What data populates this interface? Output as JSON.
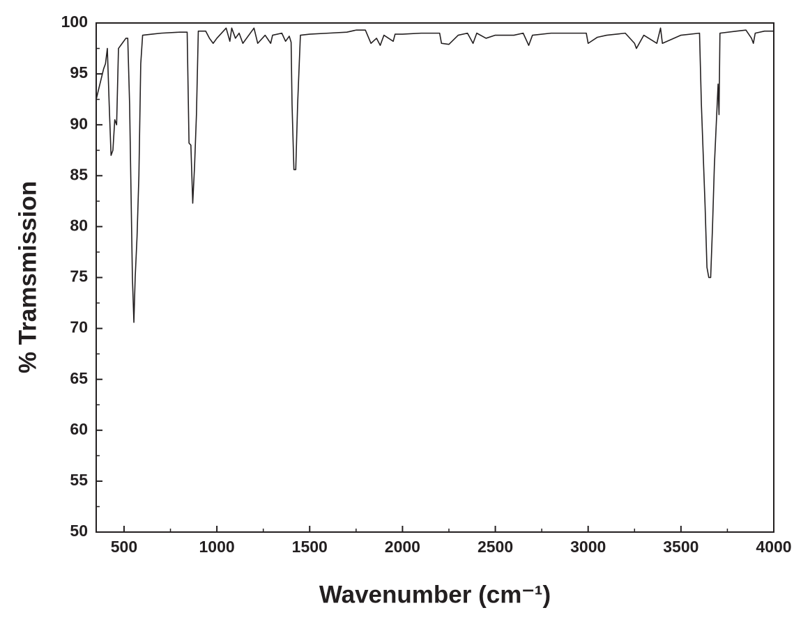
{
  "chart_data": {
    "type": "line",
    "x_label": "Wavenumber (cm⁻¹)",
    "y_label": "% Tramsmission",
    "xlim": [
      350,
      4000
    ],
    "ylim": [
      50,
      100
    ],
    "xticks": [
      500,
      1000,
      1500,
      2000,
      2500,
      3000,
      3500,
      4000
    ],
    "yticks": [
      50,
      55,
      60,
      65,
      70,
      75,
      80,
      85,
      90,
      95,
      100
    ],
    "xticks_minor": [
      750,
      1250,
      1750,
      2250,
      2750,
      3250,
      3750
    ],
    "yticks_minor": [
      52.5,
      57.5,
      62.5,
      67.5,
      72.5,
      77.5,
      82.5,
      87.5,
      92.5,
      97.5
    ],
    "series": [
      {
        "color": "#231f20",
        "x": [
          350,
          370,
          390,
          400,
          410,
          420,
          430,
          440,
          450,
          460,
          470,
          490,
          510,
          520,
          530,
          545,
          553,
          560,
          570,
          580,
          590,
          600,
          650,
          700,
          800,
          840,
          850,
          860,
          870,
          880,
          890,
          900,
          940,
          960,
          980,
          1000,
          1050,
          1070,
          1080,
          1100,
          1120,
          1140,
          1200,
          1220,
          1260,
          1290,
          1300,
          1350,
          1370,
          1390,
          1400,
          1405,
          1415,
          1425,
          1435,
          1450,
          1500,
          1600,
          1700,
          1750,
          1800,
          1830,
          1860,
          1880,
          1900,
          1950,
          1960,
          2000,
          2100,
          2200,
          2210,
          2250,
          2300,
          2350,
          2380,
          2400,
          2450,
          2500,
          2600,
          2650,
          2680,
          2700,
          2800,
          2900,
          2990,
          3000,
          3050,
          3100,
          3200,
          3250,
          3260,
          3300,
          3370,
          3390,
          3400,
          3500,
          3600,
          3610,
          3630,
          3640,
          3650,
          3660,
          3670,
          3680,
          3700,
          3705,
          3710,
          3800,
          3850,
          3880,
          3890,
          3900,
          3950,
          4000
        ],
        "values": [
          92.5,
          94,
          95.5,
          96,
          97.5,
          92,
          87,
          87.5,
          90.5,
          90,
          97.5,
          98,
          98.5,
          98.5,
          92,
          75,
          70.6,
          75,
          79,
          85,
          96,
          98.8,
          98.9,
          99,
          99.1,
          99.1,
          88.2,
          88,
          82.3,
          86,
          91,
          99.2,
          99.2,
          98.5,
          98,
          98.5,
          99.5,
          98.2,
          99.5,
          98.5,
          99,
          98,
          99.5,
          98,
          98.8,
          98,
          98.8,
          99,
          98.2,
          98.7,
          98.1,
          92,
          85.6,
          85.6,
          92,
          98.8,
          98.9,
          99,
          99.1,
          99.3,
          99.3,
          98,
          98.5,
          97.8,
          98.8,
          98.2,
          98.9,
          98.9,
          99,
          99,
          98,
          97.9,
          98.8,
          99,
          98,
          99,
          98.5,
          98.8,
          98.8,
          99,
          97.8,
          98.8,
          99,
          99,
          99,
          98,
          98.6,
          98.8,
          99,
          98,
          97.5,
          98.8,
          98,
          99.5,
          98,
          98.8,
          99,
          92,
          82,
          76,
          75,
          75,
          80,
          86,
          94,
          91,
          99,
          99.2,
          99.3,
          98.5,
          98,
          99,
          99.2,
          99.2
        ]
      }
    ]
  }
}
